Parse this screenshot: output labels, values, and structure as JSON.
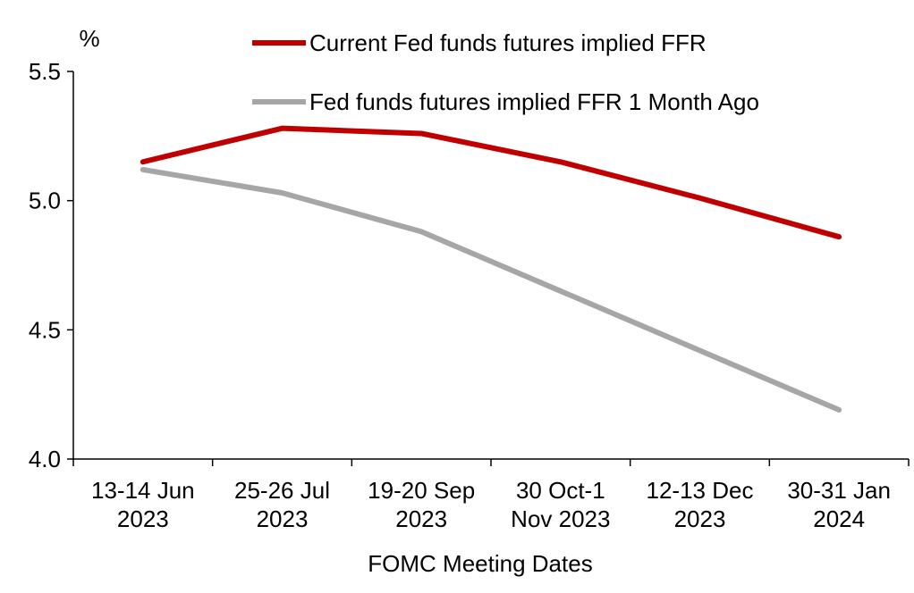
{
  "chart_data": {
    "type": "line",
    "ylabel": "%",
    "xlabel": "FOMC Meeting Dates",
    "ylim": [
      4.0,
      5.5
    ],
    "yticks": [
      "4.0",
      "4.5",
      "5.0",
      "5.5"
    ],
    "ytick_values": [
      4.0,
      4.5,
      5.0,
      5.5
    ],
    "categories": [
      [
        "13-14 Jun",
        "2023"
      ],
      [
        "25-26 Jul",
        "2023"
      ],
      [
        "19-20 Sep",
        "2023"
      ],
      [
        "30 Oct-1",
        "Nov 2023"
      ],
      [
        "12-13 Dec",
        "2023"
      ],
      [
        "30-31 Jan",
        "2024"
      ]
    ],
    "series": [
      {
        "name": "Current Fed funds futures implied FFR",
        "color": "#c00000",
        "values": [
          5.15,
          5.28,
          5.26,
          5.15,
          5.01,
          4.86
        ]
      },
      {
        "name": "Fed funds futures implied FFR 1 Month Ago",
        "color": "#a6a6a6",
        "values": [
          5.12,
          5.03,
          4.88,
          4.65,
          4.42,
          4.19
        ]
      }
    ],
    "grid": false,
    "legend_position": "top-right"
  }
}
